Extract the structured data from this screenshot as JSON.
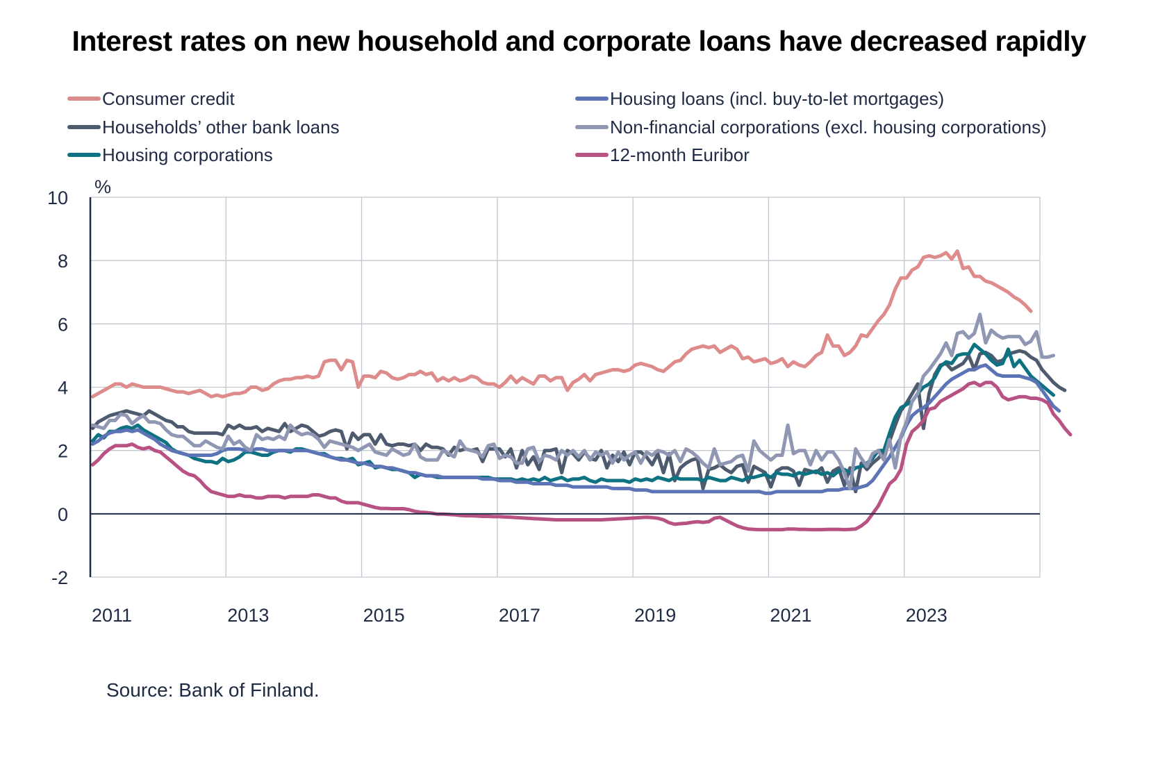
{
  "chart_data": {
    "type": "line",
    "title": "Interest rates on new household and corporate loans have decreased rapidly",
    "ylabel": "%",
    "xlabel": "",
    "ylim": [
      -2,
      10
    ],
    "yticks": [
      -2,
      0,
      2,
      4,
      6,
      8,
      10
    ],
    "xticks": [
      "2011",
      "2013",
      "2015",
      "2017",
      "2019",
      "2021",
      "2023"
    ],
    "x_start": "2011-01",
    "x_end_axis": "2024-12",
    "frequency": "monthly",
    "grid": true,
    "legend_position": "top",
    "source": "Source: Bank of Finland.",
    "series": [
      {
        "name": "Consumer credit",
        "color": "#de8b8c",
        "values": [
          3.7,
          3.8,
          3.9,
          4.0,
          4.1,
          4.1,
          4.0,
          4.1,
          4.05,
          4.0,
          4.0,
          4.0,
          4.0,
          3.95,
          3.9,
          3.85,
          3.85,
          3.8,
          3.85,
          3.9,
          3.8,
          3.7,
          3.75,
          3.7,
          3.75,
          3.8,
          3.8,
          3.85,
          4.0,
          4.0,
          3.9,
          3.95,
          4.1,
          4.2,
          4.25,
          4.25,
          4.3,
          4.3,
          4.35,
          4.3,
          4.35,
          4.8,
          4.85,
          4.85,
          4.55,
          4.85,
          4.8,
          4.0,
          4.35,
          4.35,
          4.3,
          4.5,
          4.45,
          4.3,
          4.25,
          4.3,
          4.4,
          4.4,
          4.5,
          4.4,
          4.45,
          4.2,
          4.3,
          4.2,
          4.3,
          4.2,
          4.25,
          4.35,
          4.3,
          4.15,
          4.1,
          4.1,
          4.0,
          4.15,
          4.35,
          4.15,
          4.3,
          4.2,
          4.1,
          4.35,
          4.35,
          4.2,
          4.3,
          4.3,
          3.9,
          4.15,
          4.25,
          4.4,
          4.2,
          4.4,
          4.45,
          4.5,
          4.55,
          4.55,
          4.5,
          4.55,
          4.7,
          4.75,
          4.7,
          4.65,
          4.55,
          4.5,
          4.65,
          4.8,
          4.85,
          5.05,
          5.2,
          5.25,
          5.3,
          5.25,
          5.3,
          5.1,
          5.2,
          5.3,
          5.2,
          4.9,
          4.95,
          4.8,
          4.85,
          4.9,
          4.75,
          4.8,
          4.9,
          4.65,
          4.8,
          4.7,
          4.65,
          4.8,
          5.0,
          5.1,
          5.65,
          5.3,
          5.3,
          5.0,
          5.1,
          5.3,
          5.65,
          5.6,
          5.85,
          6.1,
          6.3,
          6.6,
          7.1,
          7.45,
          7.45,
          7.7,
          7.8,
          8.1,
          8.15,
          8.1,
          8.15,
          8.25,
          8.05,
          8.3,
          7.75,
          7.8,
          7.5,
          7.5,
          7.35,
          7.3,
          7.2,
          7.1,
          7.0,
          6.85,
          6.75,
          6.6,
          6.4
        ]
      },
      {
        "name": "Households' other bank loans",
        "color": "#4e5b6e",
        "values": [
          2.7,
          2.9,
          3.0,
          3.1,
          3.15,
          3.2,
          3.25,
          3.2,
          3.15,
          3.1,
          3.25,
          3.15,
          3.05,
          2.95,
          2.9,
          2.75,
          2.75,
          2.6,
          2.55,
          2.55,
          2.55,
          2.55,
          2.55,
          2.5,
          2.8,
          2.7,
          2.8,
          2.7,
          2.7,
          2.75,
          2.6,
          2.7,
          2.65,
          2.6,
          2.85,
          2.6,
          2.7,
          2.8,
          2.75,
          2.6,
          2.45,
          2.5,
          2.6,
          2.65,
          2.6,
          2.05,
          2.55,
          2.35,
          2.5,
          2.5,
          2.2,
          2.5,
          2.2,
          2.15,
          2.2,
          2.2,
          2.15,
          2.2,
          2.0,
          2.2,
          2.1,
          2.1,
          2.05,
          1.85,
          2.1,
          2.0,
          2.05,
          2.0,
          2.05,
          1.65,
          2.05,
          2.05,
          2.05,
          1.8,
          2.05,
          1.45,
          2.0,
          1.55,
          1.8,
          1.4,
          2.0,
          2.0,
          2.05,
          1.3,
          2.0,
          1.9,
          1.7,
          1.95,
          1.75,
          1.7,
          2.0,
          1.45,
          1.85,
          1.65,
          1.95,
          1.55,
          1.95,
          1.95,
          1.8,
          1.55,
          1.9,
          1.3,
          1.9,
          1.05,
          1.45,
          1.6,
          1.7,
          1.75,
          0.8,
          1.4,
          1.45,
          1.55,
          1.4,
          1.3,
          1.5,
          1.55,
          1.0,
          1.5,
          1.4,
          1.3,
          0.85,
          1.35,
          1.45,
          1.45,
          1.35,
          0.9,
          1.4,
          1.35,
          1.3,
          1.45,
          1.0,
          1.35,
          1.45,
          0.9,
          1.45,
          0.7,
          1.6,
          1.4,
          1.6,
          1.75,
          1.95,
          2.3,
          2.8,
          3.25,
          3.5,
          3.8,
          4.1,
          2.7,
          3.8,
          4.4,
          4.7,
          4.75,
          4.55,
          4.65,
          4.75,
          5.0,
          4.55,
          5.05,
          5.1,
          5.0,
          4.8,
          4.85,
          5.05,
          5.1,
          5.15,
          5.1,
          4.95,
          4.85,
          4.55,
          4.35,
          4.15,
          4.0,
          3.9
        ]
      },
      {
        "name": "Housing corporations",
        "color": "#0e7283",
        "values": [
          2.3,
          2.5,
          2.4,
          2.6,
          2.6,
          2.7,
          2.75,
          2.7,
          2.8,
          2.65,
          2.55,
          2.45,
          2.35,
          2.25,
          2.05,
          1.95,
          1.9,
          1.85,
          1.75,
          1.7,
          1.65,
          1.65,
          1.6,
          1.75,
          1.65,
          1.7,
          1.8,
          1.95,
          1.95,
          1.9,
          1.85,
          1.85,
          1.95,
          2.0,
          2.0,
          1.95,
          2.05,
          2.05,
          2.0,
          1.95,
          1.9,
          1.9,
          1.8,
          1.75,
          1.75,
          1.7,
          1.75,
          1.55,
          1.6,
          1.65,
          1.45,
          1.5,
          1.45,
          1.4,
          1.4,
          1.35,
          1.3,
          1.15,
          1.25,
          1.2,
          1.2,
          1.15,
          1.15,
          1.15,
          1.15,
          1.15,
          1.15,
          1.15,
          1.15,
          1.15,
          1.15,
          1.1,
          1.1,
          1.1,
          1.1,
          1.05,
          1.1,
          1.05,
          1.1,
          1.05,
          1.15,
          1.05,
          1.1,
          1.15,
          1.05,
          1.1,
          1.1,
          1.15,
          1.05,
          1.0,
          1.1,
          1.05,
          1.05,
          1.05,
          1.05,
          1.0,
          1.1,
          1.05,
          1.1,
          1.05,
          1.15,
          1.1,
          1.05,
          1.15,
          1.1,
          1.1,
          1.1,
          1.1,
          1.05,
          1.15,
          1.1,
          1.05,
          1.05,
          1.15,
          1.1,
          1.05,
          1.15,
          1.15,
          1.2,
          1.25,
          1.15,
          1.3,
          1.25,
          1.25,
          1.2,
          1.3,
          1.25,
          1.3,
          1.35,
          1.25,
          1.3,
          1.2,
          1.35,
          1.4,
          1.3,
          1.45,
          1.5,
          1.6,
          1.75,
          2.0,
          2.0,
          2.55,
          3.05,
          3.35,
          3.45,
          3.55,
          3.8,
          4.0,
          4.1,
          4.3,
          4.65,
          4.8,
          4.75,
          5.0,
          5.05,
          5.05,
          5.35,
          5.2,
          5.05,
          4.85,
          4.7,
          4.75,
          5.2,
          4.65,
          4.85,
          4.6,
          4.35,
          4.2,
          4.05,
          3.9,
          3.75
        ]
      },
      {
        "name": "Housing loans (incl. buy-to-let mortgages)",
        "color": "#5c74b5",
        "values": [
          2.2,
          2.3,
          2.45,
          2.55,
          2.6,
          2.6,
          2.65,
          2.6,
          2.65,
          2.55,
          2.45,
          2.35,
          2.2,
          2.1,
          2.0,
          1.95,
          1.9,
          1.85,
          1.85,
          1.85,
          1.85,
          1.85,
          1.9,
          2.0,
          2.05,
          2.05,
          2.05,
          2.0,
          2.0,
          2.05,
          2.05,
          2.0,
          2.0,
          2.0,
          2.0,
          2.0,
          2.0,
          2.0,
          2.0,
          1.95,
          1.9,
          1.85,
          1.8,
          1.75,
          1.7,
          1.7,
          1.65,
          1.6,
          1.6,
          1.55,
          1.5,
          1.5,
          1.45,
          1.45,
          1.4,
          1.35,
          1.3,
          1.3,
          1.25,
          1.2,
          1.2,
          1.2,
          1.15,
          1.15,
          1.15,
          1.15,
          1.15,
          1.15,
          1.15,
          1.1,
          1.1,
          1.1,
          1.05,
          1.05,
          1.05,
          1.0,
          1.0,
          1.0,
          0.95,
          0.95,
          0.95,
          0.95,
          0.9,
          0.9,
          0.9,
          0.85,
          0.85,
          0.85,
          0.85,
          0.85,
          0.85,
          0.85,
          0.8,
          0.8,
          0.8,
          0.8,
          0.75,
          0.75,
          0.75,
          0.7,
          0.7,
          0.7,
          0.7,
          0.7,
          0.7,
          0.7,
          0.7,
          0.7,
          0.7,
          0.7,
          0.7,
          0.7,
          0.7,
          0.7,
          0.7,
          0.7,
          0.7,
          0.7,
          0.7,
          0.65,
          0.65,
          0.7,
          0.7,
          0.7,
          0.7,
          0.7,
          0.7,
          0.7,
          0.7,
          0.7,
          0.75,
          0.75,
          0.75,
          0.8,
          0.8,
          0.8,
          0.85,
          0.9,
          1.05,
          1.3,
          1.55,
          1.8,
          2.1,
          2.4,
          2.8,
          3.1,
          3.25,
          3.35,
          3.5,
          3.7,
          3.9,
          4.1,
          4.25,
          4.35,
          4.45,
          4.55,
          4.55,
          4.65,
          4.7,
          4.55,
          4.4,
          4.35,
          4.35,
          4.35,
          4.35,
          4.3,
          4.25,
          4.15,
          3.9,
          3.65,
          3.4,
          3.25
        ]
      },
      {
        "name": "Non-financial corporations (excl. housing corporations)",
        "color": "#8f97b3",
        "values": [
          2.8,
          2.75,
          2.7,
          2.95,
          2.95,
          3.15,
          3.1,
          2.85,
          3.0,
          3.1,
          2.9,
          2.9,
          2.85,
          2.65,
          2.5,
          2.45,
          2.45,
          2.3,
          2.15,
          2.15,
          2.3,
          2.2,
          2.1,
          2.05,
          2.45,
          2.2,
          2.3,
          2.1,
          2.0,
          2.5,
          2.35,
          2.4,
          2.35,
          2.45,
          2.35,
          2.8,
          2.6,
          2.5,
          2.55,
          2.5,
          2.35,
          2.1,
          2.3,
          2.25,
          2.2,
          2.15,
          2.1,
          2.0,
          2.1,
          2.2,
          1.95,
          1.9,
          1.85,
          2.05,
          1.95,
          1.85,
          1.9,
          2.2,
          1.8,
          1.7,
          1.7,
          1.7,
          2.0,
          1.9,
          1.8,
          2.3,
          2.05,
          2.0,
          1.95,
          1.8,
          2.15,
          2.2,
          1.75,
          1.85,
          1.8,
          1.6,
          1.6,
          2.05,
          2.1,
          1.65,
          1.85,
          1.8,
          1.7,
          2.0,
          1.85,
          2.0,
          1.8,
          2.0,
          1.7,
          1.95,
          1.85,
          1.95,
          1.6,
          1.95,
          1.7,
          1.85,
          1.95,
          1.6,
          1.95,
          1.85,
          2.0,
          1.95,
          1.85,
          2.0,
          1.65,
          2.05,
          1.95,
          1.8,
          1.6,
          1.45,
          2.05,
          1.55,
          1.6,
          1.65,
          1.8,
          1.85,
          1.35,
          2.3,
          2.0,
          1.85,
          1.7,
          1.85,
          1.85,
          2.8,
          1.9,
          2.0,
          2.0,
          1.55,
          2.0,
          1.7,
          1.95,
          1.95,
          1.7,
          1.3,
          0.8,
          2.05,
          1.75,
          1.5,
          1.9,
          2.0,
          1.7,
          2.35,
          1.45,
          2.45,
          2.9,
          3.55,
          3.8,
          4.35,
          4.55,
          4.8,
          5.05,
          5.4,
          5.0,
          5.7,
          5.75,
          5.55,
          5.7,
          6.3,
          5.4,
          5.8,
          5.65,
          5.55,
          5.6,
          5.6,
          5.6,
          5.35,
          5.45,
          5.75,
          4.95,
          4.95,
          5.0
        ]
      },
      {
        "name": "12-month Euribor",
        "color": "#b85283",
        "values": [
          1.55,
          1.7,
          1.9,
          2.05,
          2.15,
          2.15,
          2.15,
          2.2,
          2.1,
          2.05,
          2.1,
          2.0,
          1.95,
          1.8,
          1.65,
          1.5,
          1.35,
          1.25,
          1.2,
          1.05,
          0.85,
          0.7,
          0.65,
          0.6,
          0.55,
          0.55,
          0.6,
          0.55,
          0.55,
          0.5,
          0.5,
          0.55,
          0.55,
          0.55,
          0.5,
          0.55,
          0.55,
          0.55,
          0.55,
          0.6,
          0.6,
          0.55,
          0.5,
          0.5,
          0.4,
          0.35,
          0.35,
          0.35,
          0.3,
          0.25,
          0.2,
          0.17,
          0.17,
          0.16,
          0.16,
          0.16,
          0.13,
          0.08,
          0.05,
          0.04,
          0.02,
          -0.01,
          -0.01,
          -0.02,
          -0.03,
          -0.05,
          -0.06,
          -0.06,
          -0.07,
          -0.08,
          -0.08,
          -0.09,
          -0.09,
          -0.1,
          -0.11,
          -0.12,
          -0.13,
          -0.14,
          -0.15,
          -0.16,
          -0.17,
          -0.18,
          -0.19,
          -0.19,
          -0.19,
          -0.19,
          -0.19,
          -0.19,
          -0.19,
          -0.19,
          -0.19,
          -0.18,
          -0.17,
          -0.16,
          -0.15,
          -0.14,
          -0.13,
          -0.12,
          -0.11,
          -0.12,
          -0.14,
          -0.19,
          -0.28,
          -0.33,
          -0.31,
          -0.3,
          -0.27,
          -0.25,
          -0.27,
          -0.25,
          -0.14,
          -0.11,
          -0.2,
          -0.29,
          -0.38,
          -0.44,
          -0.48,
          -0.49,
          -0.5,
          -0.5,
          -0.5,
          -0.5,
          -0.5,
          -0.48,
          -0.48,
          -0.49,
          -0.49,
          -0.5,
          -0.5,
          -0.5,
          -0.49,
          -0.49,
          -0.49,
          -0.5,
          -0.49,
          -0.48,
          -0.38,
          -0.24,
          0.0,
          0.25,
          0.6,
          0.95,
          1.1,
          1.4,
          2.2,
          2.6,
          2.75,
          2.95,
          3.3,
          3.35,
          3.55,
          3.65,
          3.75,
          3.85,
          3.95,
          4.1,
          4.15,
          4.05,
          4.15,
          4.15,
          4.0,
          3.7,
          3.6,
          3.65,
          3.7,
          3.7,
          3.65,
          3.65,
          3.6,
          3.5,
          3.15,
          2.95,
          2.7,
          2.5
        ]
      }
    ]
  },
  "legend": {
    "items": [
      {
        "label": "Consumer credit",
        "color": "#de8b8c"
      },
      {
        "label": "Housing loans (incl. buy-to-let mortgages)",
        "color": "#5c74b5"
      },
      {
        "label": "Households’ other bank loans",
        "color": "#4e5b6e"
      },
      {
        "label": "Non-financial corporations (excl. housing corporations)",
        "color": "#8f97b3"
      },
      {
        "label": "Housing corporations",
        "color": "#0e7283"
      },
      {
        "label": "12-month Euribor",
        "color": "#b85283"
      }
    ]
  }
}
